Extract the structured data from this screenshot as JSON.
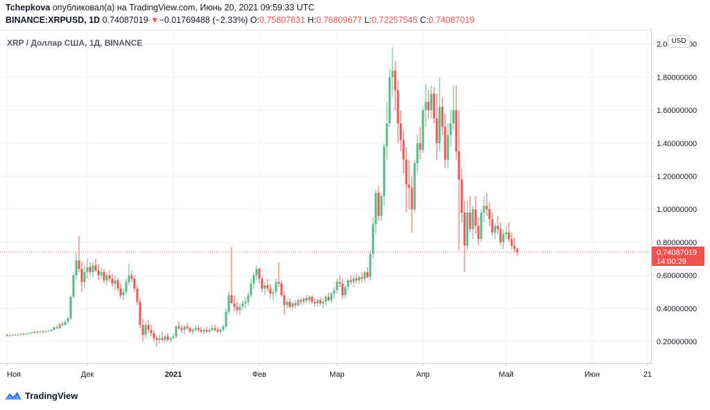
{
  "header": {
    "author": "Tchepkova",
    "published": " опубликовал(а) на TradingView.com, Июнь 20, 2021 09:59:33 UTC",
    "symbol": "BINANCE:XRPUSD, 1D",
    "last": "0.74087019",
    "change_arrow": "▼",
    "change": "−0.01769488 (−2.33%)",
    "o_label": "O:",
    "o_value": "0.75807831",
    "h_label": "H:",
    "h_value": "0.76809677",
    "l_label": "L:",
    "l_value": "0.72257545",
    "c_label": "C:",
    "c_value": "0.74087019"
  },
  "chart_title": "XRP / Доллар США, 1Д, BINANCE",
  "currency_badge": "USD",
  "price_label": "0.74087019",
  "countdown_label": "14:00:29",
  "footer": {
    "brand": "TradingView"
  },
  "colors": {
    "up": "#26a69a",
    "up_body": "#53b987",
    "down": "#ef5350",
    "grid": "#f0f3fa",
    "axis_text": "#131722"
  },
  "chart_data": {
    "type": "candlestick",
    "title": "XRP / Доллар США, 1Д, BINANCE",
    "ylim": [
      0.1,
      2.1
    ],
    "y_ticks": [
      "0.20000000",
      "0.40000000",
      "0.60000000",
      "0.80000000",
      "1.00000000",
      "1.20000000",
      "1.40000000",
      "1.60000000",
      "1.80000000",
      "2.00000000"
    ],
    "x_ticks": [
      "Ноя",
      "Дек",
      "2021",
      "Фев",
      "Мар",
      "Апр",
      "Май",
      "Июн",
      "21"
    ],
    "x_tick_index": [
      0,
      29,
      60,
      91,
      119,
      150,
      180,
      211,
      231
    ],
    "grid": true,
    "last_price": 0.74087019,
    "ohlc": [
      [
        0.24,
        0.245,
        0.23,
        0.235
      ],
      [
        0.235,
        0.24,
        0.23,
        0.237
      ],
      [
        0.237,
        0.245,
        0.233,
        0.24
      ],
      [
        0.24,
        0.244,
        0.235,
        0.236
      ],
      [
        0.236,
        0.242,
        0.232,
        0.24
      ],
      [
        0.24,
        0.25,
        0.236,
        0.245
      ],
      [
        0.245,
        0.25,
        0.24,
        0.243
      ],
      [
        0.243,
        0.25,
        0.24,
        0.248
      ],
      [
        0.248,
        0.255,
        0.244,
        0.25
      ],
      [
        0.25,
        0.258,
        0.246,
        0.255
      ],
      [
        0.255,
        0.262,
        0.25,
        0.252
      ],
      [
        0.252,
        0.26,
        0.248,
        0.258
      ],
      [
        0.258,
        0.265,
        0.254,
        0.26
      ],
      [
        0.26,
        0.268,
        0.255,
        0.258
      ],
      [
        0.258,
        0.266,
        0.252,
        0.262
      ],
      [
        0.262,
        0.27,
        0.258,
        0.265
      ],
      [
        0.265,
        0.275,
        0.26,
        0.27
      ],
      [
        0.27,
        0.29,
        0.265,
        0.285
      ],
      [
        0.285,
        0.3,
        0.278,
        0.28
      ],
      [
        0.28,
        0.31,
        0.275,
        0.305
      ],
      [
        0.305,
        0.32,
        0.29,
        0.3
      ],
      [
        0.3,
        0.33,
        0.295,
        0.32
      ],
      [
        0.32,
        0.35,
        0.31,
        0.34
      ],
      [
        0.34,
        0.48,
        0.33,
        0.47
      ],
      [
        0.47,
        0.62,
        0.46,
        0.6
      ],
      [
        0.6,
        0.74,
        0.57,
        0.69
      ],
      [
        0.69,
        0.84,
        0.62,
        0.64
      ],
      [
        0.64,
        0.68,
        0.5,
        0.56
      ],
      [
        0.56,
        0.66,
        0.52,
        0.62
      ],
      [
        0.62,
        0.7,
        0.58,
        0.65
      ],
      [
        0.65,
        0.68,
        0.6,
        0.62
      ],
      [
        0.62,
        0.68,
        0.59,
        0.66
      ],
      [
        0.66,
        0.7,
        0.62,
        0.63
      ],
      [
        0.63,
        0.67,
        0.57,
        0.6
      ],
      [
        0.6,
        0.65,
        0.58,
        0.62
      ],
      [
        0.62,
        0.64,
        0.55,
        0.57
      ],
      [
        0.57,
        0.62,
        0.54,
        0.6
      ],
      [
        0.6,
        0.63,
        0.56,
        0.58
      ],
      [
        0.58,
        0.61,
        0.53,
        0.55
      ],
      [
        0.55,
        0.6,
        0.51,
        0.57
      ],
      [
        0.57,
        0.59,
        0.5,
        0.52
      ],
      [
        0.52,
        0.55,
        0.46,
        0.48
      ],
      [
        0.48,
        0.52,
        0.45,
        0.5
      ],
      [
        0.5,
        0.58,
        0.48,
        0.56
      ],
      [
        0.56,
        0.67,
        0.54,
        0.6
      ],
      [
        0.6,
        0.63,
        0.56,
        0.58
      ],
      [
        0.58,
        0.6,
        0.5,
        0.52
      ],
      [
        0.52,
        0.54,
        0.42,
        0.44
      ],
      [
        0.44,
        0.46,
        0.28,
        0.3
      ],
      [
        0.3,
        0.34,
        0.2,
        0.24
      ],
      [
        0.24,
        0.32,
        0.22,
        0.3
      ],
      [
        0.3,
        0.33,
        0.25,
        0.27
      ],
      [
        0.27,
        0.3,
        0.23,
        0.25
      ],
      [
        0.25,
        0.27,
        0.2,
        0.22
      ],
      [
        0.22,
        0.24,
        0.17,
        0.21
      ],
      [
        0.21,
        0.24,
        0.19,
        0.22
      ],
      [
        0.22,
        0.26,
        0.2,
        0.21
      ],
      [
        0.21,
        0.24,
        0.19,
        0.23
      ],
      [
        0.23,
        0.25,
        0.2,
        0.21
      ],
      [
        0.21,
        0.23,
        0.19,
        0.22
      ],
      [
        0.22,
        0.25,
        0.21,
        0.23
      ],
      [
        0.23,
        0.3,
        0.22,
        0.29
      ],
      [
        0.29,
        0.32,
        0.27,
        0.28
      ],
      [
        0.28,
        0.3,
        0.25,
        0.27
      ],
      [
        0.27,
        0.3,
        0.24,
        0.29
      ],
      [
        0.29,
        0.31,
        0.27,
        0.28
      ],
      [
        0.28,
        0.29,
        0.25,
        0.26
      ],
      [
        0.26,
        0.28,
        0.24,
        0.27
      ],
      [
        0.27,
        0.3,
        0.26,
        0.28
      ],
      [
        0.28,
        0.3,
        0.26,
        0.27
      ],
      [
        0.27,
        0.29,
        0.25,
        0.26
      ],
      [
        0.26,
        0.28,
        0.24,
        0.27
      ],
      [
        0.27,
        0.29,
        0.25,
        0.26
      ],
      [
        0.26,
        0.28,
        0.25,
        0.27
      ],
      [
        0.27,
        0.3,
        0.26,
        0.28
      ],
      [
        0.28,
        0.3,
        0.26,
        0.27
      ],
      [
        0.27,
        0.29,
        0.25,
        0.26
      ],
      [
        0.26,
        0.28,
        0.24,
        0.27
      ],
      [
        0.27,
        0.3,
        0.26,
        0.29
      ],
      [
        0.29,
        0.4,
        0.28,
        0.38
      ],
      [
        0.38,
        0.5,
        0.36,
        0.48
      ],
      [
        0.48,
        0.77,
        0.43,
        0.43
      ],
      [
        0.43,
        0.48,
        0.38,
        0.41
      ],
      [
        0.41,
        0.44,
        0.37,
        0.39
      ],
      [
        0.39,
        0.43,
        0.36,
        0.41
      ],
      [
        0.41,
        0.45,
        0.39,
        0.43
      ],
      [
        0.43,
        0.47,
        0.4,
        0.44
      ],
      [
        0.44,
        0.5,
        0.42,
        0.48
      ],
      [
        0.48,
        0.58,
        0.46,
        0.55
      ],
      [
        0.55,
        0.62,
        0.52,
        0.6
      ],
      [
        0.6,
        0.66,
        0.57,
        0.64
      ],
      [
        0.64,
        0.65,
        0.55,
        0.58
      ],
      [
        0.58,
        0.6,
        0.5,
        0.52
      ],
      [
        0.52,
        0.56,
        0.48,
        0.54
      ],
      [
        0.54,
        0.58,
        0.5,
        0.52
      ],
      [
        0.52,
        0.55,
        0.46,
        0.49
      ],
      [
        0.49,
        0.52,
        0.45,
        0.5
      ],
      [
        0.5,
        0.58,
        0.48,
        0.56
      ],
      [
        0.56,
        0.68,
        0.53,
        0.55
      ],
      [
        0.55,
        0.57,
        0.47,
        0.48
      ],
      [
        0.48,
        0.5,
        0.36,
        0.42
      ],
      [
        0.42,
        0.46,
        0.4,
        0.44
      ],
      [
        0.44,
        0.46,
        0.4,
        0.41
      ],
      [
        0.41,
        0.44,
        0.39,
        0.43
      ],
      [
        0.43,
        0.45,
        0.4,
        0.42
      ],
      [
        0.42,
        0.46,
        0.41,
        0.45
      ],
      [
        0.45,
        0.47,
        0.42,
        0.44
      ],
      [
        0.44,
        0.47,
        0.42,
        0.46
      ],
      [
        0.46,
        0.48,
        0.43,
        0.45
      ],
      [
        0.45,
        0.48,
        0.43,
        0.47
      ],
      [
        0.47,
        0.48,
        0.43,
        0.44
      ],
      [
        0.44,
        0.46,
        0.41,
        0.43
      ],
      [
        0.43,
        0.46,
        0.41,
        0.45
      ],
      [
        0.45,
        0.47,
        0.42,
        0.43
      ],
      [
        0.43,
        0.46,
        0.4,
        0.44
      ],
      [
        0.44,
        0.48,
        0.42,
        0.47
      ],
      [
        0.47,
        0.5,
        0.44,
        0.45
      ],
      [
        0.45,
        0.5,
        0.43,
        0.49
      ],
      [
        0.49,
        0.53,
        0.46,
        0.51
      ],
      [
        0.51,
        0.58,
        0.49,
        0.56
      ],
      [
        0.56,
        0.6,
        0.53,
        0.55
      ],
      [
        0.55,
        0.58,
        0.46,
        0.48
      ],
      [
        0.48,
        0.54,
        0.46,
        0.53
      ],
      [
        0.53,
        0.58,
        0.51,
        0.57
      ],
      [
        0.57,
        0.6,
        0.54,
        0.56
      ],
      [
        0.56,
        0.6,
        0.53,
        0.58
      ],
      [
        0.58,
        0.61,
        0.55,
        0.57
      ],
      [
        0.57,
        0.6,
        0.55,
        0.59
      ],
      [
        0.59,
        0.62,
        0.56,
        0.58
      ],
      [
        0.58,
        0.63,
        0.56,
        0.62
      ],
      [
        0.62,
        0.65,
        0.58,
        0.59
      ],
      [
        0.59,
        0.75,
        0.57,
        0.73
      ],
      [
        0.73,
        0.95,
        0.7,
        0.91
      ],
      [
        0.91,
        1.12,
        0.85,
        1.1
      ],
      [
        1.1,
        1.14,
        0.93,
        0.96
      ],
      [
        0.96,
        1.1,
        0.93,
        1.08
      ],
      [
        1.08,
        1.4,
        1.02,
        1.38
      ],
      [
        1.38,
        1.65,
        1.3,
        1.52
      ],
      [
        1.52,
        1.85,
        1.5,
        1.8
      ],
      [
        1.8,
        1.98,
        1.68,
        1.84
      ],
      [
        1.84,
        1.9,
        1.6,
        1.72
      ],
      [
        1.72,
        1.78,
        1.4,
        1.52
      ],
      [
        1.52,
        1.6,
        1.35,
        1.42
      ],
      [
        1.42,
        1.48,
        1.22,
        1.3
      ],
      [
        1.3,
        1.38,
        0.98,
        1.15
      ],
      [
        1.15,
        1.3,
        1.0,
        1.13
      ],
      [
        1.13,
        1.2,
        0.86,
        1.0
      ],
      [
        1.0,
        1.3,
        0.98,
        1.28
      ],
      [
        1.28,
        1.45,
        1.22,
        1.4
      ],
      [
        1.4,
        1.5,
        1.3,
        1.36
      ],
      [
        1.36,
        1.62,
        1.34,
        1.6
      ],
      [
        1.6,
        1.76,
        1.5,
        1.65
      ],
      [
        1.65,
        1.72,
        1.55,
        1.6
      ],
      [
        1.6,
        1.75,
        1.55,
        1.7
      ],
      [
        1.7,
        1.74,
        1.52,
        1.55
      ],
      [
        1.55,
        1.7,
        1.3,
        1.4
      ],
      [
        1.4,
        1.8,
        1.35,
        1.62
      ],
      [
        1.62,
        1.68,
        1.45,
        1.5
      ],
      [
        1.5,
        1.58,
        1.25,
        1.3
      ],
      [
        1.3,
        1.52,
        1.25,
        1.45
      ],
      [
        1.45,
        1.6,
        1.38,
        1.52
      ],
      [
        1.52,
        1.75,
        1.48,
        1.6
      ],
      [
        1.6,
        1.75,
        1.3,
        1.35
      ],
      [
        1.35,
        1.6,
        0.75,
        1.18
      ],
      [
        1.18,
        1.25,
        0.92,
        0.98
      ],
      [
        0.98,
        1.05,
        0.62,
        0.78
      ],
      [
        0.78,
        1.05,
        0.75,
        0.98
      ],
      [
        0.98,
        1.08,
        0.86,
        0.88
      ],
      [
        0.88,
        1.02,
        0.82,
        1.0
      ],
      [
        1.0,
        1.08,
        0.85,
        0.9
      ],
      [
        0.9,
        0.95,
        0.78,
        0.82
      ],
      [
        0.82,
        1.0,
        0.8,
        0.98
      ],
      [
        0.98,
        1.08,
        0.92,
        1.02
      ],
      [
        1.02,
        1.1,
        0.96,
        1.0
      ],
      [
        1.0,
        1.04,
        0.9,
        0.94
      ],
      [
        0.94,
        0.98,
        0.84,
        0.86
      ],
      [
        0.86,
        0.92,
        0.82,
        0.9
      ],
      [
        0.9,
        0.96,
        0.85,
        0.88
      ],
      [
        0.88,
        0.92,
        0.78,
        0.8
      ],
      [
        0.8,
        0.88,
        0.76,
        0.85
      ],
      [
        0.85,
        0.9,
        0.82,
        0.86
      ],
      [
        0.86,
        0.92,
        0.8,
        0.82
      ],
      [
        0.82,
        0.86,
        0.76,
        0.78
      ],
      [
        0.78,
        0.83,
        0.74,
        0.76
      ],
      [
        0.76,
        0.77,
        0.72,
        0.74
      ]
    ]
  }
}
